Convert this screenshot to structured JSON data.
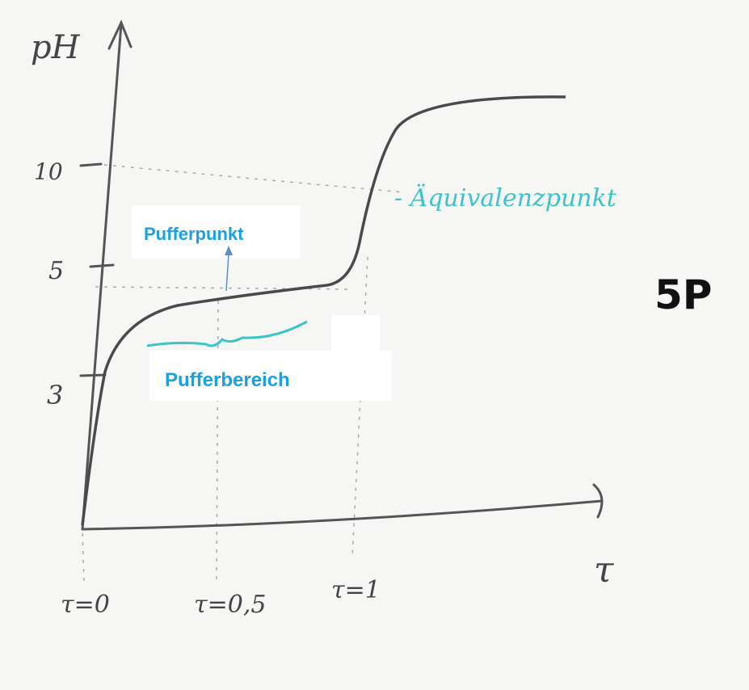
{
  "axes": {
    "y_label": "pH",
    "x_label": "τ",
    "y_ticks": [
      "10",
      "5",
      "3"
    ],
    "x_ticks": [
      "τ=0",
      "τ=0,5",
      "τ=1"
    ]
  },
  "annotations": {
    "equivalence": "- Äquivalenzpunkt",
    "buffer_point": "Pufferpunkt",
    "buffer_range": "Pufferbereich",
    "score": "5P"
  }
}
